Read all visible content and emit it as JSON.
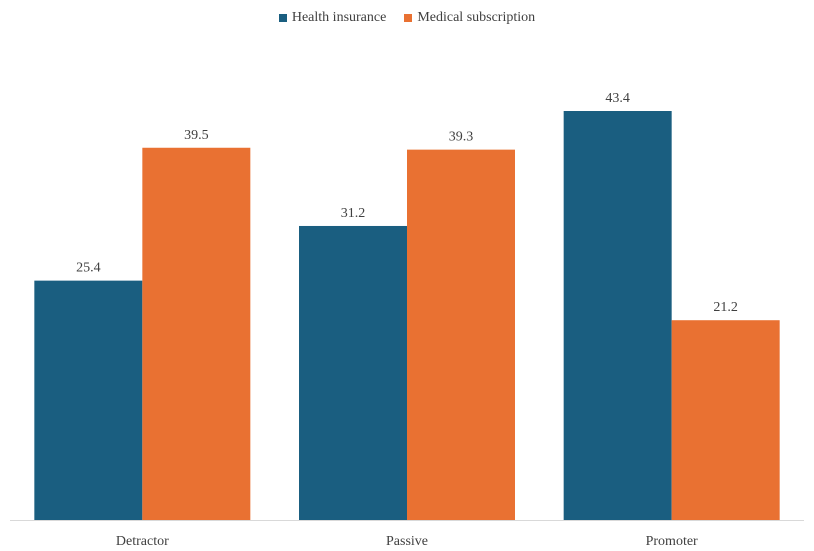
{
  "chart_data": {
    "type": "bar",
    "categories": [
      "Detractor",
      "Passive",
      "Promoter"
    ],
    "series": [
      {
        "name": "Health insurance",
        "values": [
          25.4,
          31.2,
          43.4
        ],
        "color": "#1a5e80"
      },
      {
        "name": "Medical subscription",
        "values": [
          39.5,
          39.3,
          21.2
        ],
        "color": "#e97132"
      }
    ],
    "title": "",
    "xlabel": "",
    "ylabel": "",
    "ylim": [
      0,
      43.4
    ],
    "grid": false,
    "legend_position": "top-center",
    "data_labels": true,
    "axis_color": "#d9d9d9",
    "text_color": "#404040"
  }
}
